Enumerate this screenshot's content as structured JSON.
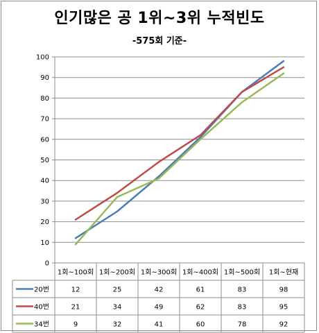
{
  "chart_data": {
    "type": "line",
    "title": "인기많은 공 1위~3위 누적빈도",
    "subtitle": "-575회 기준-",
    "categories": [
      "1회~100회",
      "1회~200회",
      "1회~300회",
      "1회~400회",
      "1회~500회",
      "1회~현재"
    ],
    "series": [
      {
        "name": "20번",
        "color": "#4a7ebb",
        "values": [
          12,
          25,
          42,
          61,
          83,
          98
        ]
      },
      {
        "name": "40번",
        "color": "#be4b48",
        "values": [
          21,
          34,
          49,
          62,
          83,
          95
        ]
      },
      {
        "name": "34번",
        "color": "#98b954",
        "values": [
          9,
          32,
          41,
          60,
          78,
          92
        ]
      }
    ],
    "ylim": [
      0,
      100
    ],
    "yticks": [
      0,
      10,
      20,
      30,
      40,
      50,
      60,
      70,
      80,
      90,
      100
    ],
    "grid": true,
    "legend": "data-table"
  }
}
